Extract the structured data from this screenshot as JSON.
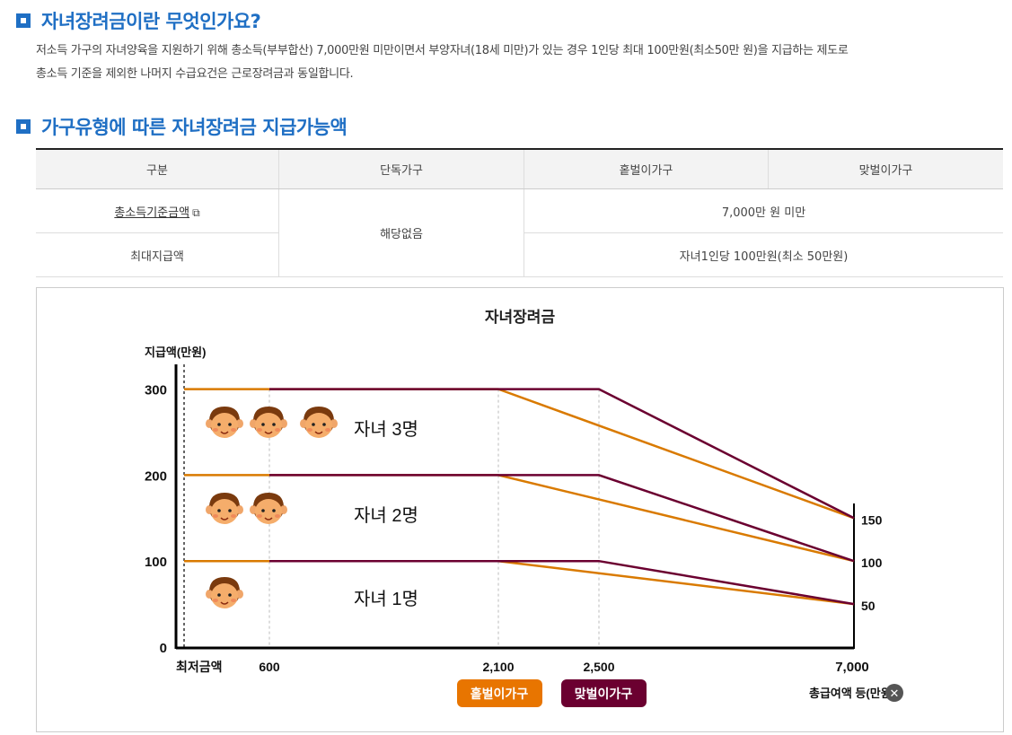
{
  "section1": {
    "title": "자녀장려금이란 무엇인가요?",
    "line1": "저소득 가구의 자녀양육을 지원하기 위해 총소득(부부합산) 7,000만원 미만이면서 부양자녀(18세 미만)가 있는 경우 1인당 최대 100만원(최소50만 원)을 지급하는 제도로",
    "line2": "총소득 기준을 제외한 나머지 수급요건은 근로장려금과 동일합니다."
  },
  "section2": {
    "title": "가구유형에 따른 자녀장려금 지급가능액"
  },
  "table": {
    "headers": [
      "구분",
      "단독가구",
      "홑벌이가구",
      "맞벌이가구"
    ],
    "row1": {
      "label": "총소득기준금액",
      "single": "해당없음",
      "value": "7,000만 원 미만"
    },
    "row2": {
      "label": "최대지급액",
      "value": "자녀1인당 100만원(최소 50만원)"
    }
  },
  "chart_data": {
    "type": "line",
    "title": "자녀장려금",
    "ylabel": "지급액(만원)",
    "xlabel": "총급여액 등(만원)",
    "x_ticks": [
      "최저금액",
      "600",
      "2,100",
      "2,500",
      "7,000"
    ],
    "y_ticks": [
      "0",
      "100",
      "200",
      "300"
    ],
    "right_labels": [
      "150",
      "100",
      "50"
    ],
    "ylim": [
      0,
      300
    ],
    "colors": {
      "single_earner": "#d97a00",
      "dual_earner": "#6b0030"
    },
    "legend": [
      "홑벌이가구",
      "맞벌이가구"
    ],
    "annotations": [
      "자녀 3명",
      "자녀 2명",
      "자녀 1명"
    ],
    "series": [
      {
        "name": "홑벌이가구",
        "children": 3,
        "x": [
          0,
          2100,
          7000
        ],
        "y": [
          300,
          300,
          150
        ]
      },
      {
        "name": "맞벌이가구",
        "children": 3,
        "x": [
          600,
          2500,
          7000
        ],
        "y": [
          300,
          300,
          150
        ]
      },
      {
        "name": "홑벌이가구",
        "children": 2,
        "x": [
          0,
          2100,
          7000
        ],
        "y": [
          200,
          200,
          100
        ]
      },
      {
        "name": "맞벌이가구",
        "children": 2,
        "x": [
          600,
          2500,
          7000
        ],
        "y": [
          200,
          200,
          100
        ]
      },
      {
        "name": "홑벌이가구",
        "children": 1,
        "x": [
          0,
          2100,
          7000
        ],
        "y": [
          100,
          100,
          50
        ]
      },
      {
        "name": "맞벌이가구",
        "children": 1,
        "x": [
          600,
          2500,
          7000
        ],
        "y": [
          100,
          100,
          50
        ]
      }
    ]
  }
}
